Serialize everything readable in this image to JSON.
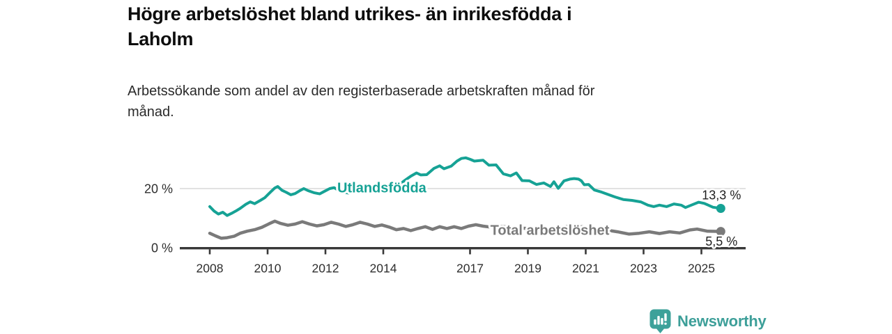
{
  "header": {
    "title_lines": [
      "Högre arbetslöshet bland utrikes- än inrikesfödda i",
      "Laholm"
    ],
    "subtitle_lines": [
      "Arbetssökande som andel av den registerbaserade arbetskraften månad för",
      "månad."
    ]
  },
  "chart_data": {
    "type": "line",
    "title": "Högre arbetslöshet bland utrikes- än inrikesfödda i Laholm",
    "subtitle": "Arbetssökande som andel av den registerbaserade arbetskraften månad för månad.",
    "unit": "%",
    "grid": "single-horizontal-gridline-at-20",
    "legend": "inline-line-labels",
    "x_axis": {
      "range": [
        2006.95,
        2026.55
      ],
      "tick_years": [
        2008,
        2010,
        2012,
        2014,
        2017,
        2019,
        2021,
        2023,
        2025
      ],
      "tick_labels": [
        "2008",
        "2010",
        "2012",
        "2014",
        "2017",
        "2019",
        "2021",
        "2023",
        "2025"
      ]
    },
    "y_axis": {
      "range": [
        0,
        33
      ],
      "ticks": [
        {
          "value": 20,
          "label": "20 %"
        },
        {
          "value": 0,
          "label": "0 %"
        }
      ]
    },
    "series": [
      {
        "name": "Utlandsfödda",
        "color": "#16a295",
        "end_label": "13,3 %",
        "end_value": 13.3,
        "label_pos": {
          "year": 2013.95,
          "value": 20.4
        },
        "points": [
          [
            2008.0,
            13.9
          ],
          [
            2008.15,
            12.4
          ],
          [
            2008.3,
            11.4
          ],
          [
            2008.45,
            12.0
          ],
          [
            2008.6,
            10.9
          ],
          [
            2008.75,
            11.6
          ],
          [
            2008.9,
            12.4
          ],
          [
            2009.05,
            13.3
          ],
          [
            2009.25,
            14.7
          ],
          [
            2009.4,
            15.5
          ],
          [
            2009.55,
            14.9
          ],
          [
            2009.75,
            16.0
          ],
          [
            2009.9,
            16.9
          ],
          [
            2010.1,
            18.8
          ],
          [
            2010.25,
            20.2
          ],
          [
            2010.35,
            20.7
          ],
          [
            2010.5,
            19.4
          ],
          [
            2010.65,
            18.7
          ],
          [
            2010.8,
            17.9
          ],
          [
            2010.95,
            18.3
          ],
          [
            2011.1,
            19.2
          ],
          [
            2011.25,
            20.0
          ],
          [
            2011.4,
            19.3
          ],
          [
            2011.6,
            18.6
          ],
          [
            2011.8,
            18.2
          ],
          [
            2011.95,
            19.0
          ],
          [
            2012.15,
            20.0
          ],
          [
            2012.3,
            20.3
          ],
          [
            2012.5,
            19.1
          ],
          [
            2012.65,
            18.7
          ],
          [
            2012.8,
            18.5
          ],
          [
            2012.95,
            19.4
          ],
          [
            2013.15,
            19.9
          ],
          [
            2013.35,
            20.6
          ],
          [
            2013.5,
            19.8
          ],
          [
            2013.7,
            19.5
          ],
          [
            2013.9,
            20.4
          ],
          [
            2014.1,
            20.9
          ],
          [
            2014.3,
            20.4
          ],
          [
            2014.55,
            21.3
          ],
          [
            2014.75,
            22.8
          ],
          [
            2014.95,
            24.2
          ],
          [
            2015.15,
            25.3
          ],
          [
            2015.3,
            24.6
          ],
          [
            2015.5,
            24.7
          ],
          [
            2015.75,
            26.8
          ],
          [
            2015.95,
            27.7
          ],
          [
            2016.1,
            26.7
          ],
          [
            2016.35,
            27.6
          ],
          [
            2016.55,
            29.3
          ],
          [
            2016.7,
            30.2
          ],
          [
            2016.85,
            30.4
          ],
          [
            2017.0,
            29.9
          ],
          [
            2017.15,
            29.3
          ],
          [
            2017.45,
            29.6
          ],
          [
            2017.65,
            27.9
          ],
          [
            2017.9,
            28.0
          ],
          [
            2018.15,
            25.0
          ],
          [
            2018.4,
            24.3
          ],
          [
            2018.6,
            25.3
          ],
          [
            2018.8,
            22.7
          ],
          [
            2019.05,
            22.6
          ],
          [
            2019.3,
            21.4
          ],
          [
            2019.55,
            21.9
          ],
          [
            2019.78,
            20.7
          ],
          [
            2019.9,
            22.3
          ],
          [
            2020.05,
            20.1
          ],
          [
            2020.25,
            22.6
          ],
          [
            2020.45,
            23.2
          ],
          [
            2020.6,
            23.4
          ],
          [
            2020.75,
            23.2
          ],
          [
            2020.85,
            22.6
          ],
          [
            2020.95,
            21.3
          ],
          [
            2021.1,
            21.4
          ],
          [
            2021.3,
            19.5
          ],
          [
            2021.55,
            18.8
          ],
          [
            2021.8,
            17.9
          ],
          [
            2022.0,
            17.2
          ],
          [
            2022.3,
            16.3
          ],
          [
            2022.6,
            16.0
          ],
          [
            2022.9,
            15.5
          ],
          [
            2023.15,
            14.4
          ],
          [
            2023.35,
            13.9
          ],
          [
            2023.55,
            14.4
          ],
          [
            2023.8,
            13.9
          ],
          [
            2024.05,
            14.8
          ],
          [
            2024.3,
            14.4
          ],
          [
            2024.45,
            13.6
          ],
          [
            2024.65,
            14.4
          ],
          [
            2024.9,
            15.4
          ],
          [
            2025.1,
            15.0
          ],
          [
            2025.4,
            13.7
          ],
          [
            2025.67,
            13.3
          ]
        ]
      },
      {
        "name": "Total arbetslöshet",
        "color": "#7a7a7a",
        "end_label": "5,5 %",
        "end_value": 5.5,
        "label_pos": {
          "year": 2019.76,
          "value": 6.0
        },
        "points": [
          [
            2008.0,
            4.9
          ],
          [
            2008.2,
            4.0
          ],
          [
            2008.4,
            3.2
          ],
          [
            2008.6,
            3.4
          ],
          [
            2008.85,
            3.9
          ],
          [
            2009.05,
            4.9
          ],
          [
            2009.3,
            5.6
          ],
          [
            2009.55,
            6.1
          ],
          [
            2009.8,
            6.9
          ],
          [
            2010.05,
            8.1
          ],
          [
            2010.25,
            9.0
          ],
          [
            2010.45,
            8.2
          ],
          [
            2010.7,
            7.6
          ],
          [
            2010.95,
            8.0
          ],
          [
            2011.2,
            8.8
          ],
          [
            2011.45,
            8.0
          ],
          [
            2011.7,
            7.4
          ],
          [
            2011.95,
            7.8
          ],
          [
            2012.2,
            8.6
          ],
          [
            2012.45,
            8.0
          ],
          [
            2012.7,
            7.2
          ],
          [
            2012.95,
            7.8
          ],
          [
            2013.2,
            8.6
          ],
          [
            2013.45,
            8.0
          ],
          [
            2013.7,
            7.2
          ],
          [
            2013.95,
            7.7
          ],
          [
            2014.2,
            7.0
          ],
          [
            2014.45,
            6.1
          ],
          [
            2014.7,
            6.5
          ],
          [
            2014.95,
            5.8
          ],
          [
            2015.2,
            6.5
          ],
          [
            2015.45,
            7.1
          ],
          [
            2015.7,
            6.2
          ],
          [
            2015.95,
            7.1
          ],
          [
            2016.2,
            6.5
          ],
          [
            2016.45,
            7.1
          ],
          [
            2016.7,
            6.5
          ],
          [
            2016.95,
            7.3
          ],
          [
            2017.2,
            7.8
          ],
          [
            2017.45,
            7.3
          ],
          [
            2017.7,
            7.0
          ],
          [
            2018.0,
            7.3
          ],
          [
            2018.5,
            6.8
          ],
          [
            2019.0,
            6.5
          ],
          [
            2019.5,
            6.3
          ],
          [
            2020.0,
            6.8
          ],
          [
            2020.5,
            7.3
          ],
          [
            2021.0,
            7.0
          ],
          [
            2021.5,
            6.3
          ],
          [
            2022.1,
            5.4
          ],
          [
            2022.5,
            4.6
          ],
          [
            2022.85,
            4.9
          ],
          [
            2023.2,
            5.4
          ],
          [
            2023.55,
            4.8
          ],
          [
            2023.9,
            5.4
          ],
          [
            2024.25,
            5.0
          ],
          [
            2024.6,
            6.0
          ],
          [
            2024.85,
            6.3
          ],
          [
            2025.2,
            5.6
          ],
          [
            2025.67,
            5.5
          ]
        ]
      }
    ]
  },
  "footer": {
    "brand": "Newsworthy",
    "logo_icon": "bar-chart-exclamation-bubble-icon",
    "brand_color": "#3da19a"
  },
  "colors": {
    "teal": "#16a295",
    "gray": "#7a7a7a",
    "axis": "#383838",
    "gridline": "#d9d9d9",
    "title_text": "#0d0d0d",
    "body_text": "#2a2a2a",
    "value_label_text": "#1f1f1f"
  }
}
